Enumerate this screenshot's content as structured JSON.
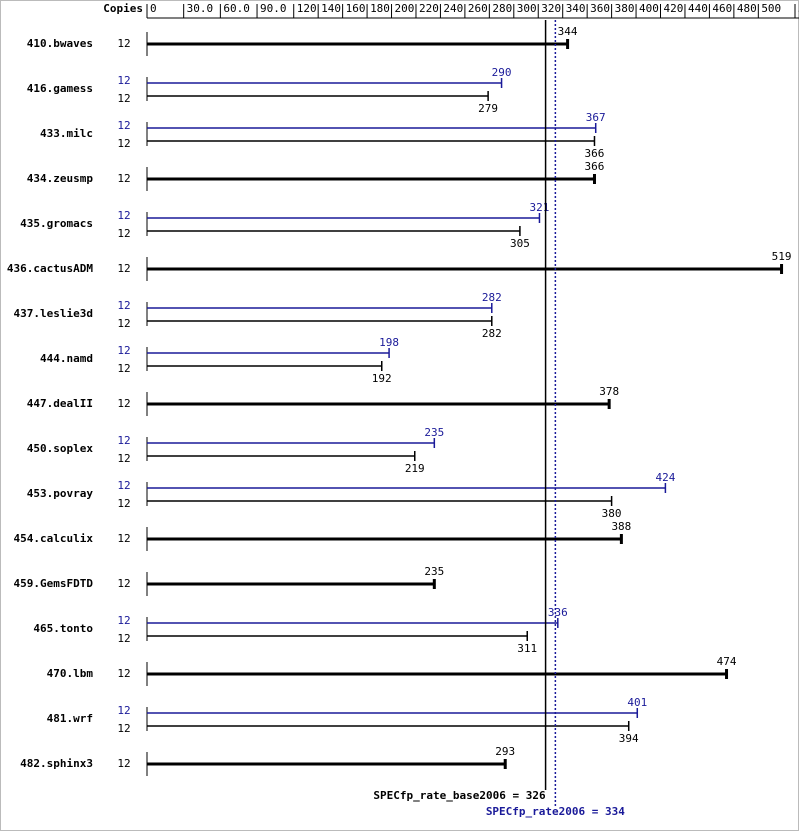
{
  "chart_data": {
    "type": "bar",
    "orientation": "horizontal",
    "axis_label": "Copies",
    "categories": [
      "410.bwaves",
      "416.gamess",
      "433.milc",
      "434.zeusmp",
      "435.gromacs",
      "436.cactusADM",
      "437.leslie3d",
      "444.namd",
      "447.dealII",
      "450.soplex",
      "453.povray",
      "454.calculix",
      "459.GemsFDTD",
      "465.tonto",
      "470.lbm",
      "481.wrf",
      "482.sphinx3"
    ],
    "series": [
      {
        "color": "#1a1a99",
        "copies": [
          null,
          12,
          12,
          null,
          12,
          null,
          12,
          12,
          null,
          12,
          12,
          null,
          null,
          12,
          null,
          12,
          null
        ],
        "values": [
          null,
          290,
          367,
          null,
          321,
          null,
          282,
          198,
          null,
          235,
          424,
          null,
          null,
          336,
          null,
          401,
          null
        ]
      },
      {
        "color": "#000000",
        "copies": [
          12,
          12,
          12,
          12,
          12,
          12,
          12,
          12,
          12,
          12,
          12,
          12,
          12,
          12,
          12,
          12,
          12
        ],
        "values": [
          344,
          279,
          366,
          366,
          305,
          519,
          282,
          192,
          378,
          219,
          380,
          388,
          235,
          311,
          474,
          394,
          293
        ]
      }
    ],
    "xlim": [
      0,
      530
    ],
    "xticks": [
      0,
      {
        "value": 30,
        "label": "30.0"
      },
      {
        "value": 60,
        "label": "60.0"
      },
      {
        "value": 90,
        "label": "90.0"
      },
      120,
      140,
      160,
      180,
      200,
      220,
      240,
      260,
      280,
      300,
      320,
      340,
      360,
      380,
      400,
      420,
      440,
      460,
      480,
      500,
      530
    ],
    "reference_lines": [
      {
        "label": "SPECfp_rate_base2006 = 326",
        "value": 326,
        "color": "#000000",
        "style": "solid"
      },
      {
        "label": "SPECfp_rate2006 = 334",
        "value": 334,
        "color": "#1a1a99",
        "style": "dotted"
      }
    ]
  }
}
